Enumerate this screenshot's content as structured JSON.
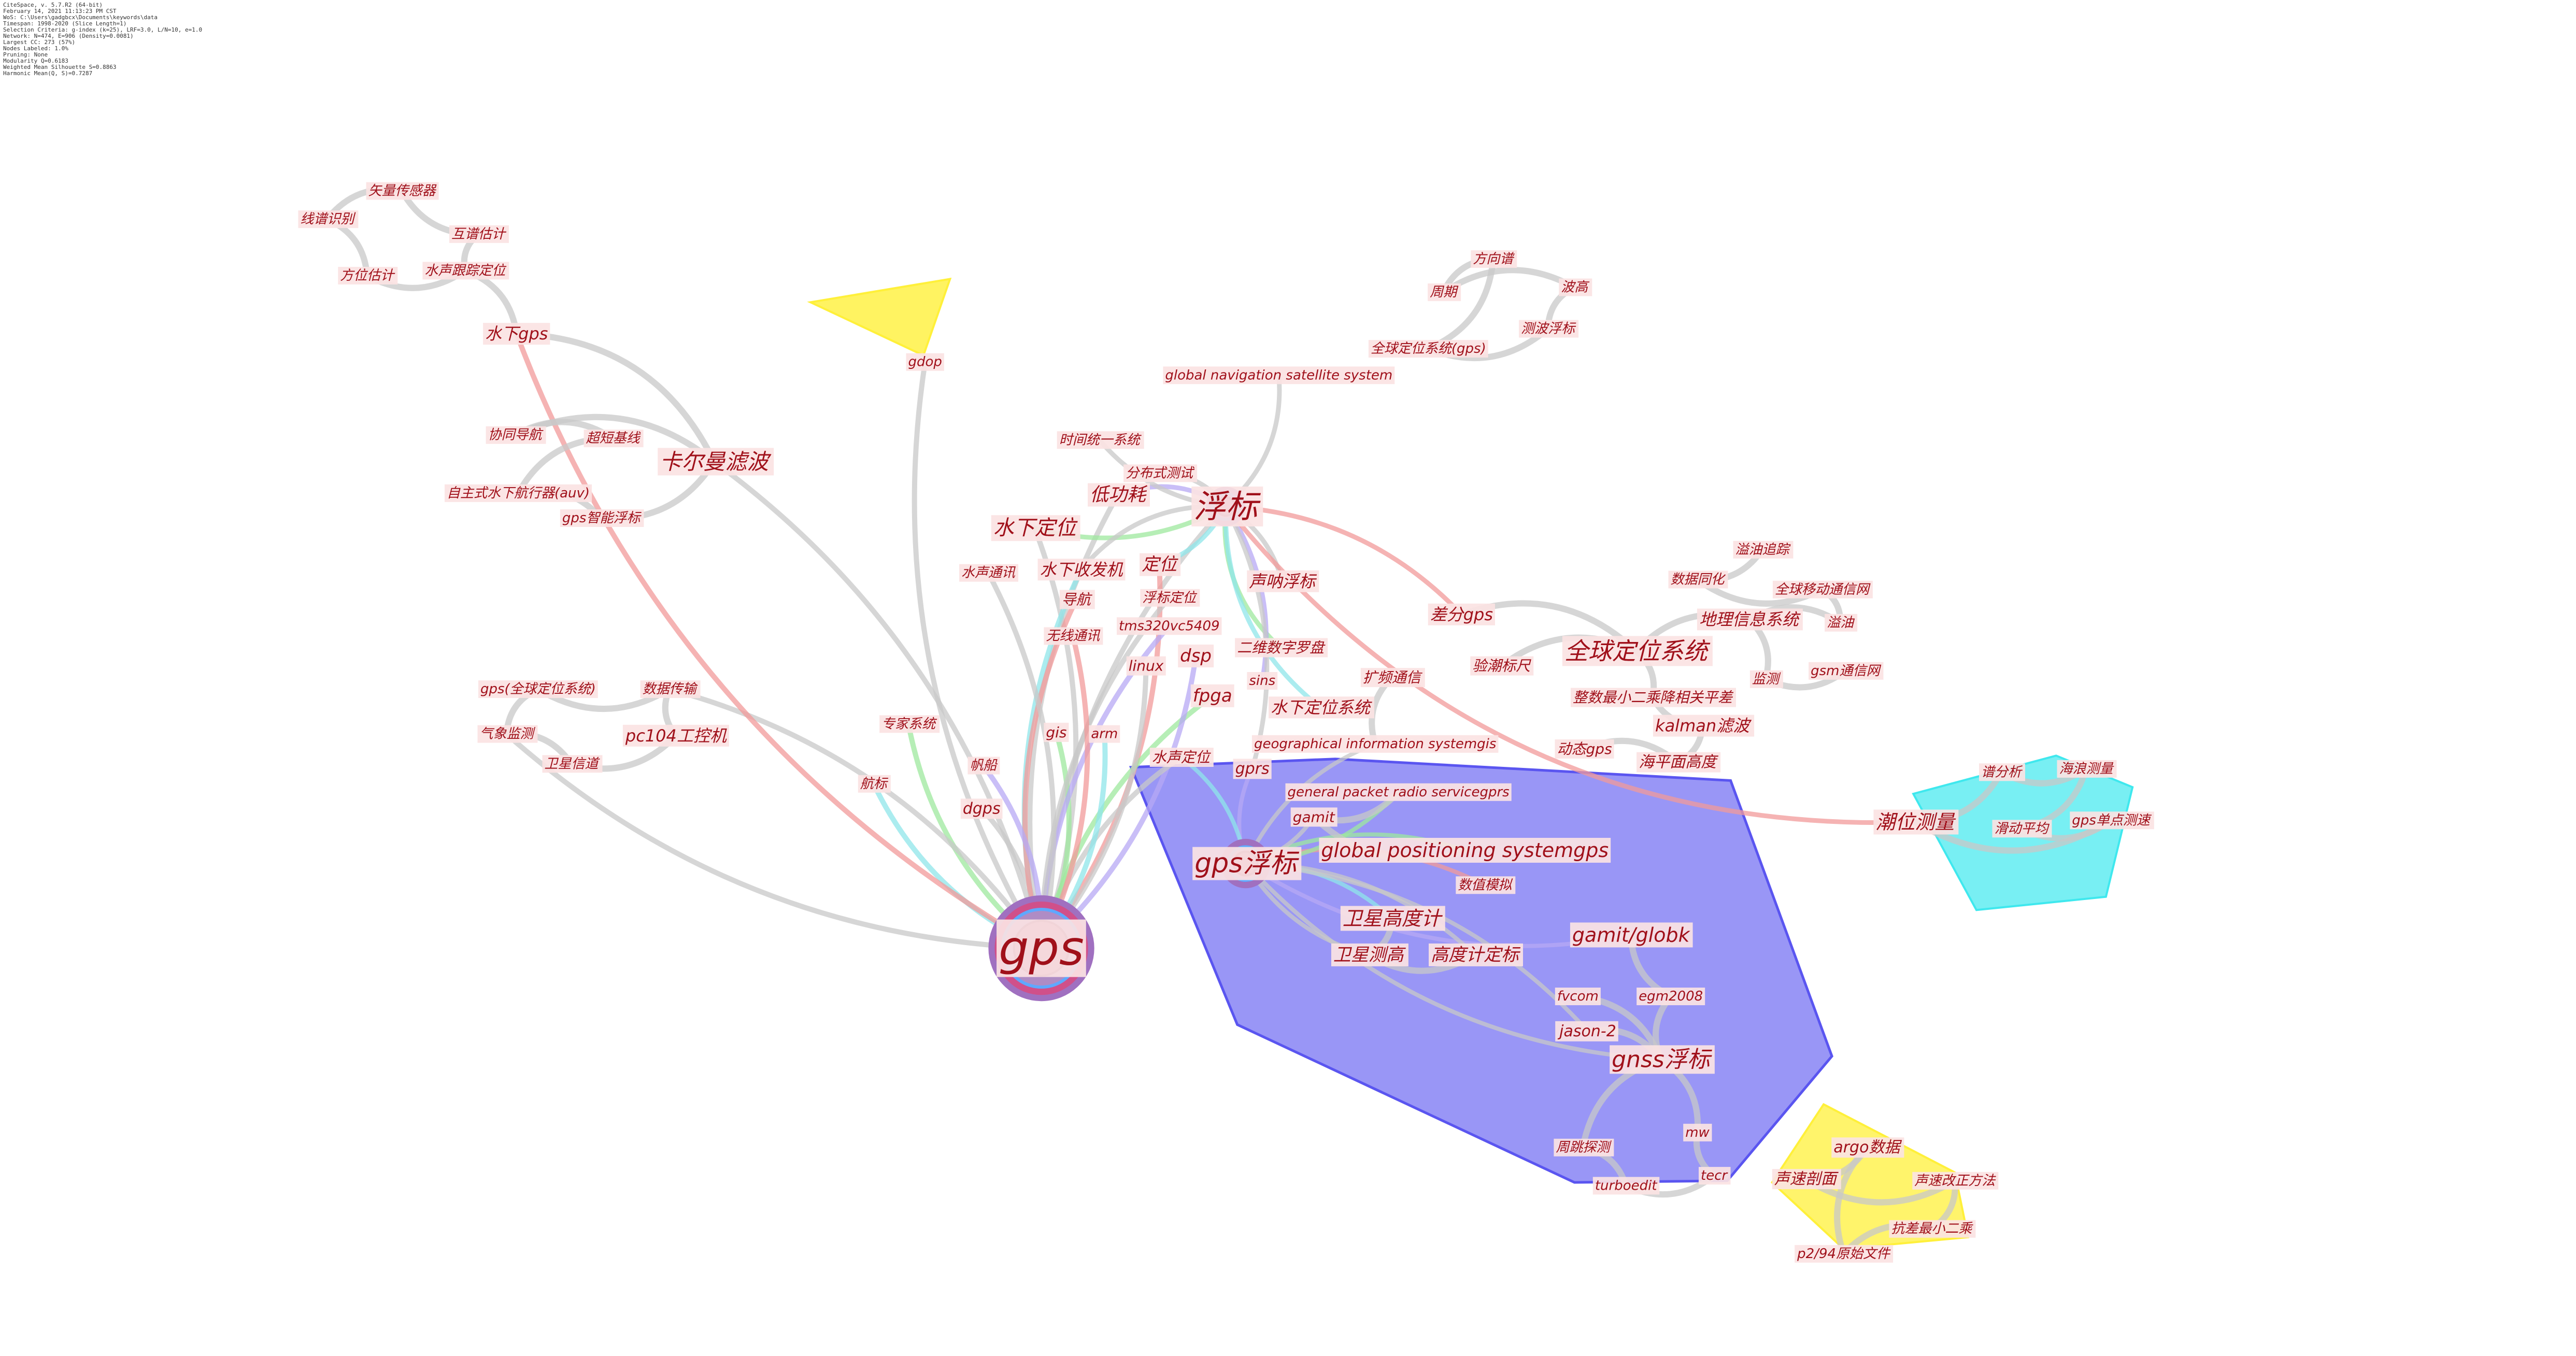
{
  "header_info": [
    "CiteSpace, v. 5.7.R2 (64-bit)",
    "February 14, 2021 11:13:23 PM CST",
    "WoS: C:\\Users\\gadgbcx\\Documents\\keywords\\data",
    "Timespan: 1998-2020 (Slice Length=1)",
    "Selection Criteria: g-index (k=25), LRF=3.0, L/N=10, e=1.0",
    "Network: N=474, E=906 (Density=0.0081)",
    "Largest CC: 273 (57%)",
    "Nodes Labeled: 1.0%",
    "Pruning: None",
    "Modularity Q=0.6183",
    "Weighted Mean Silhouette S=0.8863",
    "Harmonic Mean(Q, S)=0.7287"
  ],
  "colors": {
    "label_text": "#a0101a",
    "label_bg": "#fbe3e3",
    "edge_gray": "#c8c8c8",
    "cluster_blue": "#5a55f0",
    "cluster_yellow": "#fff03a",
    "cluster_cyan": "#3fe8ee",
    "hub_ring": "#a070c0"
  },
  "nodes": [
    {
      "label": "gps",
      "size": 92
    },
    {
      "label": "浮标",
      "size": 62
    },
    {
      "label": "gps浮标",
      "size": 52
    },
    {
      "label": "全球定位系统",
      "size": 46
    },
    {
      "label": "gnss浮标",
      "size": 44
    },
    {
      "label": "卡尔曼滤波",
      "size": 42
    },
    {
      "label": "水下定位",
      "size": 40
    },
    {
      "label": "global positioning systemgps",
      "size": 38
    },
    {
      "label": "潮位测量",
      "size": 38
    },
    {
      "label": "gamit/globk",
      "size": 38
    },
    {
      "label": "卫星高度计",
      "size": 38
    },
    {
      "label": "低功耗",
      "size": 36
    },
    {
      "label": "卫星测高",
      "size": 34
    },
    {
      "label": "高度计定标",
      "size": 34
    },
    {
      "label": "定位",
      "size": 34
    },
    {
      "label": "fpga",
      "size": 34
    },
    {
      "label": "dsp",
      "size": 34
    },
    {
      "label": "地理信息系统",
      "size": 32
    },
    {
      "label": "水下收发机",
      "size": 32
    },
    {
      "label": "声呐浮标",
      "size": 32
    },
    {
      "label": "水下gps",
      "size": 32
    },
    {
      "label": "pc104工控机",
      "size": 32
    },
    {
      "label": "差分gps",
      "size": 32
    },
    {
      "label": "水下定位系统",
      "size": 32
    },
    {
      "label": "kalman滤波",
      "size": 32
    },
    {
      "label": "海平面高度",
      "size": 30
    },
    {
      "label": "argo数据",
      "size": 30
    },
    {
      "label": "声速剖面",
      "size": 30
    },
    {
      "label": "jason-2",
      "size": 30
    },
    {
      "label": "dgps",
      "size": 30
    },
    {
      "label": "gprs",
      "size": 30
    },
    {
      "label": "gamit",
      "size": 28
    },
    {
      "label": "水声定位",
      "size": 28
    },
    {
      "label": "二维数字罗盘",
      "size": 28
    },
    {
      "label": "linux",
      "size": 28
    },
    {
      "label": "导航",
      "size": 28
    },
    {
      "label": "gis",
      "size": 28
    },
    {
      "label": "整数最小二乘降相关平差",
      "size": 28
    },
    {
      "label": "验潮标尺",
      "size": 28
    },
    {
      "label": "扩频通信",
      "size": 28
    },
    {
      "label": "动态gps",
      "size": 28
    },
    {
      "label": "数据传输",
      "size": 26
    },
    {
      "label": "egm2008",
      "size": 26
    },
    {
      "label": "fvcom",
      "size": 26
    },
    {
      "label": "数值模拟",
      "size": 26
    },
    {
      "label": "general packet radio servicegprs",
      "size": 26
    },
    {
      "label": "geographical information systemgis",
      "size": 26
    },
    {
      "label": "global navigation satellite system",
      "size": 26
    },
    {
      "label": "tms320vc5409",
      "size": 26
    },
    {
      "label": "arm",
      "size": 26
    },
    {
      "label": "sins",
      "size": 26
    },
    {
      "label": "mw",
      "size": 26
    },
    {
      "label": "tecr",
      "size": 26
    },
    {
      "label": "turboedit",
      "size": 26
    },
    {
      "label": "全球定位系统(gps)",
      "size": 26
    },
    {
      "label": "gps(全球定位系统)",
      "size": 26
    },
    {
      "label": "互谱估计",
      "size": 26
    },
    {
      "label": "矢量传感器",
      "size": 26
    },
    {
      "label": "线谱识别",
      "size": 26
    },
    {
      "label": "方位估计",
      "size": 26
    },
    {
      "label": "水声跟踪定位",
      "size": 26
    },
    {
      "label": "协同导航",
      "size": 26
    },
    {
      "label": "超短基线",
      "size": 26
    },
    {
      "label": "自主式水下航行器(auv)",
      "size": 26
    },
    {
      "label": "gps智能浮标",
      "size": 26
    },
    {
      "label": "气象监测",
      "size": 26
    },
    {
      "label": "卫星信道",
      "size": 26
    },
    {
      "label": "gdop",
      "size": 26
    },
    {
      "label": "时间统一系统",
      "size": 26
    },
    {
      "label": "分布式测试",
      "size": 26
    },
    {
      "label": "水声通讯",
      "size": 26
    },
    {
      "label": "浮标定位",
      "size": 26
    },
    {
      "label": "无线通讯",
      "size": 26
    },
    {
      "label": "专家系统",
      "size": 26
    },
    {
      "label": "帆船",
      "size": 26
    },
    {
      "label": "航标",
      "size": 26
    },
    {
      "label": "方向谱",
      "size": 26
    },
    {
      "label": "周期",
      "size": 26
    },
    {
      "label": "波高",
      "size": 26
    },
    {
      "label": "测波浮标",
      "size": 26
    },
    {
      "label": "溢油追踪",
      "size": 26
    },
    {
      "label": "数据同化",
      "size": 26
    },
    {
      "label": "全球移动通信网",
      "size": 26
    },
    {
      "label": "溢油",
      "size": 26
    },
    {
      "label": "监测",
      "size": 26
    },
    {
      "label": "gsm通信网",
      "size": 26
    },
    {
      "label": "谱分析",
      "size": 26
    },
    {
      "label": "海浪测量",
      "size": 26
    },
    {
      "label": "滑动平均",
      "size": 26
    },
    {
      "label": "gps单点测速",
      "size": 26
    },
    {
      "label": "周跳探测",
      "size": 26
    },
    {
      "label": "声速改正方法",
      "size": 26
    },
    {
      "label": "抗差最小二乘",
      "size": 26
    },
    {
      "label": "p2/94原始文件",
      "size": 26
    }
  ]
}
